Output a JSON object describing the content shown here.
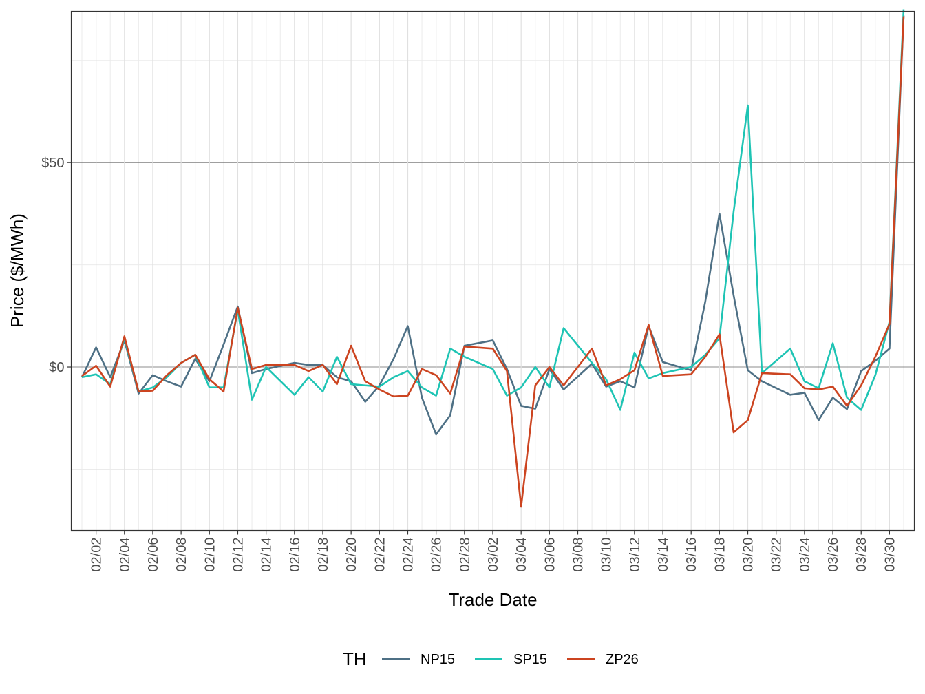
{
  "chart_data": {
    "type": "line",
    "xlabel": "Trade Date",
    "ylabel": "Price ($/MWh)",
    "ylim": [
      -40,
      87
    ],
    "y_ticks": [
      0,
      50
    ],
    "y_tick_labels": [
      "$0",
      "$50"
    ],
    "y_minor_ticks": [
      -25,
      25,
      75
    ],
    "x_tick_labels": [
      "02/02",
      "02/04",
      "02/06",
      "02/08",
      "02/10",
      "02/12",
      "02/14",
      "02/16",
      "02/18",
      "02/20",
      "02/22",
      "02/24",
      "02/26",
      "02/28",
      "03/02",
      "03/04",
      "03/06",
      "03/08",
      "03/10",
      "03/12",
      "03/14",
      "03/16",
      "03/18",
      "03/20",
      "03/22",
      "03/24",
      "03/26",
      "03/28",
      "03/30"
    ],
    "grid": true,
    "legend": {
      "title": "TH",
      "position": "bottom"
    },
    "x": [
      "02/01",
      "02/02",
      "02/03",
      "02/04",
      "02/05",
      "02/06",
      "02/07",
      "02/08",
      "02/09",
      "02/10",
      "02/11",
      "02/12",
      "02/13",
      "02/14",
      "02/16",
      "02/17",
      "02/18",
      "02/19",
      "02/20",
      "02/21",
      "02/22",
      "02/23",
      "02/24",
      "02/25",
      "02/26",
      "02/27",
      "02/28",
      "03/02",
      "03/03",
      "03/04",
      "03/05",
      "03/06",
      "03/07",
      "03/09",
      "03/10",
      "03/11",
      "03/12",
      "03/13",
      "03/14",
      "03/16",
      "03/17",
      "03/18",
      "03/19",
      "03/20",
      "03/21",
      "03/23",
      "03/24",
      "03/25",
      "03/26",
      "03/27",
      "03/28",
      "03/29",
      "03/30",
      "03/31"
    ],
    "series": [
      {
        "name": "NP15",
        "color": "#4e7085",
        "values": [
          -2.5,
          4.8,
          -2.5,
          6.5,
          -6.5,
          -2,
          -3.5,
          -4.8,
          2,
          -3.5,
          5.5,
          14.8,
          -1.5,
          -0.5,
          1,
          0.5,
          0.5,
          -2.5,
          -3.5,
          -8.5,
          -4.5,
          2,
          10,
          -7.5,
          -16.5,
          -11.8,
          5.2,
          6.5,
          -0.5,
          -9.5,
          -10.2,
          -0.5,
          -5.5,
          0.8,
          -4.8,
          -3.5,
          -5,
          10,
          1.2,
          -0.8,
          16,
          37.5,
          17.5,
          -0.8,
          -3.5,
          -6.8,
          -6.3,
          -13,
          -7.5,
          -10.3,
          -1,
          1.5,
          4.5,
          86
        ]
      },
      {
        "name": "SP15",
        "color": "#1ec4b4",
        "values": [
          -2.5,
          -1.8,
          -4.2,
          7,
          -6,
          -5,
          -2.5,
          1,
          3,
          -5,
          -5,
          14,
          -8,
          0,
          -6.8,
          -2.5,
          -6,
          2.5,
          -4.2,
          -4.5,
          -4.8,
          -2.5,
          -1,
          -5,
          -7,
          4.5,
          2.5,
          -0.5,
          -7,
          -5,
          0,
          -5,
          9.5,
          1,
          -3,
          -10.5,
          3.5,
          -2.8,
          -1.5,
          0,
          3,
          7,
          38,
          64,
          -1.5,
          4.5,
          -3.5,
          -5.2,
          5.8,
          -7.5,
          -10.5,
          -2,
          11,
          87.5
        ]
      },
      {
        "name": "ZP26",
        "color": "#cc4420",
        "values": [
          -2.2,
          0.3,
          -4.8,
          7.5,
          -6,
          -5.8,
          -2,
          1,
          3,
          -3,
          -6,
          14.5,
          -0.5,
          0.5,
          0.5,
          -1,
          0.5,
          -4.2,
          5.2,
          -3.5,
          -5.5,
          -7.2,
          -7,
          -0.5,
          -2,
          -6.5,
          5,
          4.5,
          -1,
          -34.2,
          -4.5,
          0,
          -4.5,
          4.5,
          -4.5,
          -3,
          -0.8,
          10.3,
          -2.2,
          -1.8,
          2.5,
          8,
          -16,
          -13,
          -1.5,
          -1.8,
          -5.2,
          -5.5,
          -4.8,
          -9.5,
          -4.5,
          2.5,
          10.5,
          85.8
        ]
      }
    ]
  }
}
